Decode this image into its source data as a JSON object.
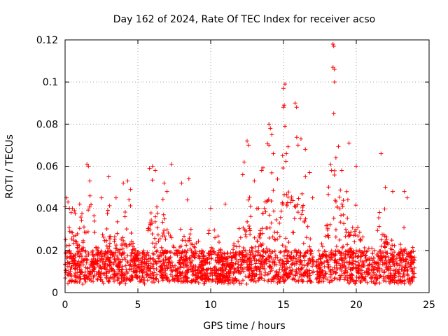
{
  "chart_data": {
    "type": "scatter",
    "title": "Day 162 of 2024, Rate Of TEC Index for receiver acso",
    "xlabel": "GPS time / hours",
    "ylabel": "ROTI / TECUs",
    "xlim": [
      0,
      25
    ],
    "ylim": [
      0,
      0.12
    ],
    "xticks": [
      0,
      5,
      10,
      15,
      20,
      25
    ],
    "xtick_labels": [
      "0",
      "5",
      "10",
      "15",
      "20",
      "25"
    ],
    "yticks": [
      0,
      0.02,
      0.04,
      0.06,
      0.08,
      0.1,
      0.12
    ],
    "ytick_labels": [
      "0",
      "0.02",
      "0.04",
      "0.06",
      "0.08",
      "0.1",
      "0.12"
    ],
    "grid": true,
    "marker": "+",
    "color": "#ff0000",
    "x_data_range": [
      0,
      24
    ],
    "typical_baseline": [
      0.005,
      0.02
    ],
    "series": [
      {
        "name": "acso",
        "points": [
          [
            0.1,
            0.045
          ],
          [
            0.2,
            0.043
          ],
          [
            0.3,
            0.04
          ],
          [
            0.5,
            0.04
          ],
          [
            1.0,
            0.042
          ],
          [
            1.5,
            0.061
          ],
          [
            1.6,
            0.06
          ],
          [
            1.7,
            0.053
          ],
          [
            2.5,
            0.045
          ],
          [
            3.0,
            0.055
          ],
          [
            3.5,
            0.045
          ],
          [
            4.0,
            0.052
          ],
          [
            4.3,
            0.053
          ],
          [
            4.5,
            0.049
          ],
          [
            5.8,
            0.059
          ],
          [
            6.0,
            0.06
          ],
          [
            6.2,
            0.058
          ],
          [
            6.8,
            0.052
          ],
          [
            7.0,
            0.048
          ],
          [
            7.3,
            0.061
          ],
          [
            8.0,
            0.052
          ],
          [
            8.5,
            0.054
          ],
          [
            8.4,
            0.044
          ],
          [
            10.0,
            0.04
          ],
          [
            11.0,
            0.042
          ],
          [
            12.3,
            0.062
          ],
          [
            12.5,
            0.072
          ],
          [
            12.6,
            0.07
          ],
          [
            12.2,
            0.056
          ],
          [
            13.0,
            0.053
          ],
          [
            13.5,
            0.058
          ],
          [
            14.0,
            0.08
          ],
          [
            14.1,
            0.078
          ],
          [
            14.2,
            0.075
          ],
          [
            14.0,
            0.07
          ],
          [
            14.3,
            0.066
          ],
          [
            15.0,
            0.097
          ],
          [
            15.1,
            0.099
          ],
          [
            15.05,
            0.089
          ],
          [
            15.0,
            0.088
          ],
          [
            15.1,
            0.079
          ],
          [
            15.2,
            0.066
          ],
          [
            15.8,
            0.09
          ],
          [
            15.9,
            0.088
          ],
          [
            16.0,
            0.07
          ],
          [
            16.2,
            0.073
          ],
          [
            16.5,
            0.068
          ],
          [
            16.8,
            0.057
          ],
          [
            17.0,
            0.045
          ],
          [
            18.3,
            0.058
          ],
          [
            18.4,
            0.118
          ],
          [
            18.45,
            0.117
          ],
          [
            18.4,
            0.107
          ],
          [
            18.5,
            0.106
          ],
          [
            18.5,
            0.1
          ],
          [
            18.45,
            0.085
          ],
          [
            18.6,
            0.064
          ],
          [
            19.0,
            0.058
          ],
          [
            19.5,
            0.071
          ],
          [
            20.0,
            0.06
          ],
          [
            21.7,
            0.066
          ],
          [
            22.0,
            0.05
          ],
          [
            22.5,
            0.048
          ],
          [
            23.3,
            0.048
          ],
          [
            23.5,
            0.045
          ]
        ]
      }
    ]
  }
}
